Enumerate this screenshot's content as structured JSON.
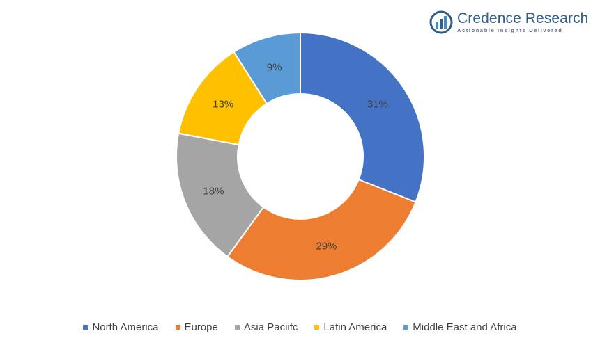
{
  "logo": {
    "name": "Credence Research",
    "tagline": "Actionable Insights Delivered",
    "color": "#2f5f8a",
    "icon": "bar-chart-circle-icon"
  },
  "chart_data": {
    "type": "pie",
    "donut": true,
    "title": "",
    "legend_position": "bottom",
    "slices": [
      {
        "label": "North America",
        "value": 31,
        "display": "31%",
        "color": "#4472c4"
      },
      {
        "label": "Europe",
        "value": 29,
        "display": "29%",
        "color": "#ed7d31"
      },
      {
        "label": "Asia Paciifc",
        "value": 18,
        "display": "18%",
        "color": "#a5a5a5"
      },
      {
        "label": "Latin America",
        "value": 13,
        "display": "13%",
        "color": "#ffc000"
      },
      {
        "label": "Middle East and Africa",
        "value": 9,
        "display": "9%",
        "color": "#5b9bd5"
      }
    ]
  }
}
